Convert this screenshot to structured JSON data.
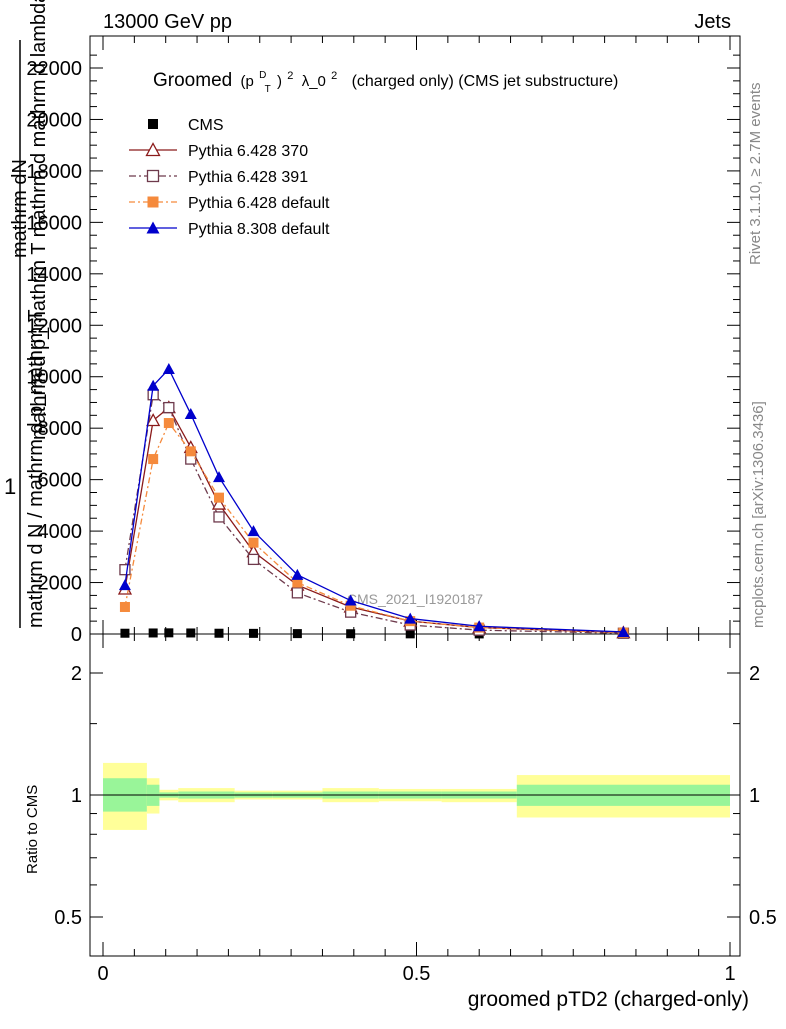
{
  "header": {
    "energy_label": "13000 GeV pp",
    "category_label": "Jets"
  },
  "side_labels": {
    "rivet_info": "Rivet 3.1.10, ≥ 2.7M events",
    "mcplots_info": "mcplots.cern.ch [arXiv:1306.3436]"
  },
  "watermark": "CMS_2021_I1920187",
  "chart_data": [
    {
      "type": "line",
      "title_prefix": "Groomed",
      "title_math_p": "(p",
      "title_math_sup_d": "D",
      "title_math_sub_t": "T",
      "title_math_close": ")",
      "title_math_sup_2": "2",
      "title_math_lambda": "λ_0",
      "title_math_sup_2b": "2",
      "title_suffix": "(charged only) (CMS jet substructure)",
      "ylabel_top": "mathrm dN",
      "ylabel_mid": "mathrm d p_mathrm T mathrm d mathrm d lambda",
      "ylabel_one": "1",
      "ylabel_bottom": "mathrm d N / mathrm d p_mathrm T",
      "xlim": [
        0,
        1
      ],
      "ylim": [
        0,
        22500
      ],
      "yticks": [
        0,
        2000,
        4000,
        6000,
        8000,
        10000,
        12000,
        14000,
        16000,
        18000,
        20000,
        22000
      ],
      "ytick_labels": [
        "0",
        "2000",
        "4000",
        "6000",
        "8000",
        "10000",
        "12000",
        "14000",
        "16000",
        "18000",
        "20000",
        "22000"
      ],
      "legend_position": "top-left",
      "series": [
        {
          "name": "CMS",
          "color": "#000000",
          "marker": "square-filled",
          "x": [
            0.035,
            0.08,
            0.105,
            0.14,
            0.185,
            0.24,
            0.31,
            0.395,
            0.49,
            0.6,
            0.83
          ],
          "y": [
            30,
            40,
            45,
            40,
            30,
            25,
            15,
            10,
            6,
            3,
            1
          ]
        },
        {
          "name": "Pythia 6.428 370",
          "color": "#8b1a1a",
          "marker": "triangle-open",
          "dash": "",
          "x": [
            0.035,
            0.08,
            0.105,
            0.14,
            0.185,
            0.24,
            0.31,
            0.395,
            0.49,
            0.6,
            0.83
          ],
          "y": [
            1750,
            8300,
            8800,
            7250,
            5050,
            3200,
            1900,
            1050,
            500,
            250,
            50
          ]
        },
        {
          "name": "Pythia 6.428 391",
          "color": "#6e3a4c",
          "marker": "square-open",
          "dash": "7,3,2,3",
          "x": [
            0.035,
            0.08,
            0.105,
            0.14,
            0.185,
            0.24,
            0.31,
            0.395,
            0.49,
            0.6,
            0.83
          ],
          "y": [
            2500,
            9300,
            8800,
            6800,
            4550,
            2900,
            1600,
            850,
            350,
            150,
            30
          ]
        },
        {
          "name": "Pythia 6.428 default",
          "color": "#f58a3c",
          "marker": "square-filled",
          "dash": "6,3,2,3",
          "x": [
            0.035,
            0.08,
            0.105,
            0.14,
            0.185,
            0.24,
            0.31,
            0.395,
            0.49,
            0.6,
            0.83
          ],
          "y": [
            1050,
            6800,
            8200,
            7100,
            5300,
            3550,
            2000,
            1100,
            500,
            250,
            50
          ]
        },
        {
          "name": "Pythia 8.308 default",
          "color": "#0000cc",
          "marker": "triangle-filled",
          "dash": "",
          "x": [
            0.035,
            0.08,
            0.105,
            0.14,
            0.185,
            0.24,
            0.31,
            0.395,
            0.49,
            0.6,
            0.83
          ],
          "y": [
            1900,
            9650,
            10300,
            8550,
            6100,
            4000,
            2300,
            1300,
            600,
            300,
            80
          ]
        }
      ]
    },
    {
      "type": "area",
      "ylabel": "Ratio to CMS",
      "xlabel": "groomed pTD2 (charged-only)",
      "xlim": [
        0,
        1
      ],
      "ylim": [
        0.42,
        2.3
      ],
      "yscale": "log",
      "yticks": [
        0.5,
        1,
        2
      ],
      "ytick_labels": [
        "0.5",
        "1",
        "2"
      ],
      "xticks": [
        0,
        0.5,
        1
      ],
      "xtick_labels": [
        "0",
        "0.5",
        "1"
      ],
      "reference_line": 1,
      "bins": [
        {
          "x0": 0.0,
          "x1": 0.07,
          "inner": [
            0.91,
            1.1
          ],
          "outer": [
            0.82,
            1.2
          ]
        },
        {
          "x0": 0.07,
          "x1": 0.09,
          "inner": [
            0.94,
            1.06
          ],
          "outer": [
            0.9,
            1.1
          ]
        },
        {
          "x0": 0.09,
          "x1": 0.12,
          "inner": [
            0.985,
            1.015
          ],
          "outer": [
            0.97,
            1.03
          ]
        },
        {
          "x0": 0.12,
          "x1": 0.21,
          "inner": [
            0.98,
            1.02
          ],
          "outer": [
            0.96,
            1.04
          ]
        },
        {
          "x0": 0.21,
          "x1": 0.27,
          "inner": [
            0.985,
            1.015
          ],
          "outer": [
            0.975,
            1.025
          ]
        },
        {
          "x0": 0.27,
          "x1": 0.35,
          "inner": [
            0.985,
            1.015
          ],
          "outer": [
            0.975,
            1.025
          ]
        },
        {
          "x0": 0.35,
          "x1": 0.44,
          "inner": [
            0.98,
            1.02
          ],
          "outer": [
            0.96,
            1.04
          ]
        },
        {
          "x0": 0.44,
          "x1": 0.54,
          "inner": [
            0.98,
            1.02
          ],
          "outer": [
            0.965,
            1.035
          ]
        },
        {
          "x0": 0.54,
          "x1": 0.66,
          "inner": [
            0.98,
            1.02
          ],
          "outer": [
            0.96,
            1.035
          ]
        },
        {
          "x0": 0.66,
          "x1": 1.0,
          "inner": [
            0.94,
            1.06
          ],
          "outer": [
            0.88,
            1.12
          ]
        }
      ],
      "colors": {
        "inner": "#99f599",
        "outer": "#ffff99"
      }
    }
  ]
}
